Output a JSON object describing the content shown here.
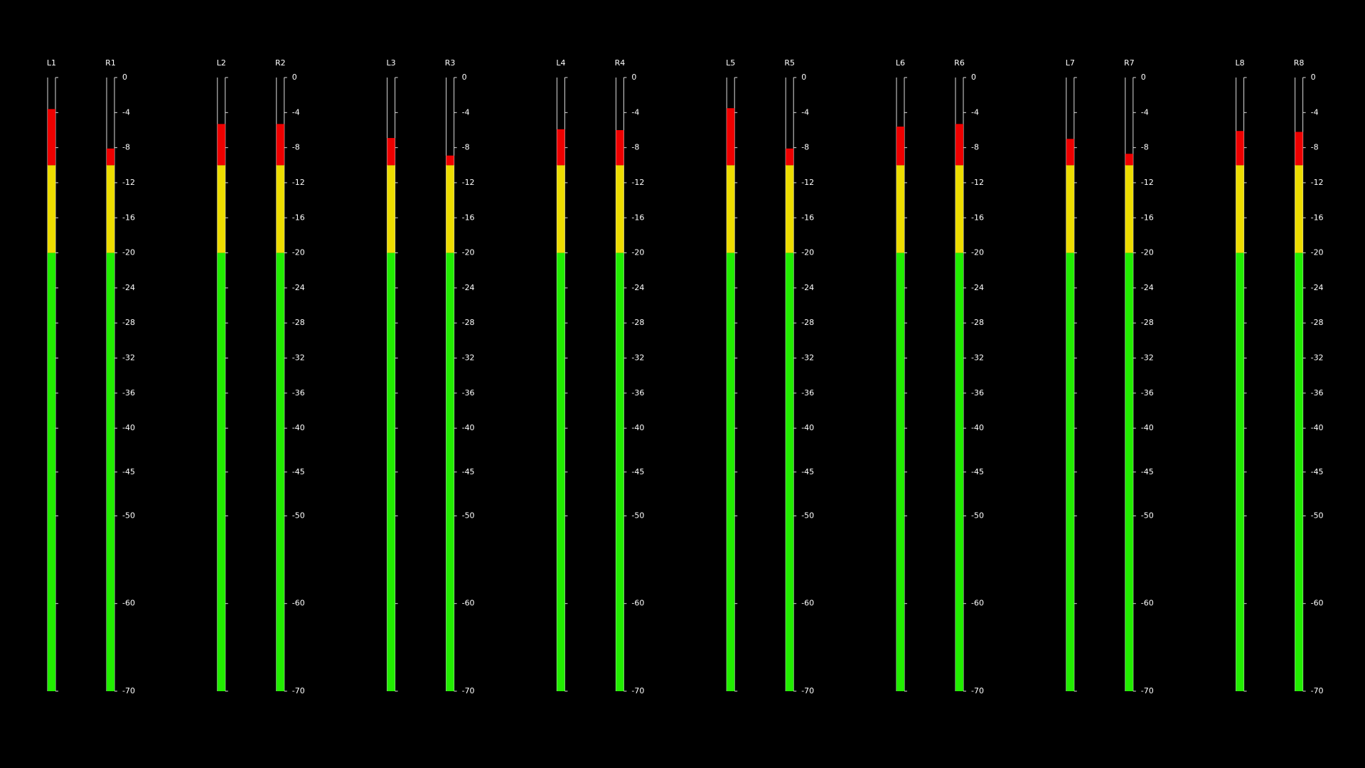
{
  "chart_data": {
    "type": "meter",
    "channels": [
      {
        "name": "L1",
        "value": -3.6
      },
      {
        "name": "R1",
        "value": -8.1
      },
      {
        "name": "L2",
        "value": -5.3
      },
      {
        "name": "R2",
        "value": -5.3
      },
      {
        "name": "L3",
        "value": -6.9
      },
      {
        "name": "R3",
        "value": -8.9
      },
      {
        "name": "L4",
        "value": -5.9
      },
      {
        "name": "R4",
        "value": -6.0
      },
      {
        "name": "L5",
        "value": -3.5
      },
      {
        "name": "R5",
        "value": -8.1
      },
      {
        "name": "L6",
        "value": -5.6
      },
      {
        "name": "R6",
        "value": -5.3
      },
      {
        "name": "L7",
        "value": -7.0
      },
      {
        "name": "R7",
        "value": -8.7
      },
      {
        "name": "L8",
        "value": -6.1
      },
      {
        "name": "R8",
        "value": -6.2
      }
    ],
    "ylim": [
      -70,
      0
    ],
    "yticks": [
      0,
      -4,
      -8,
      -12,
      -16,
      -20,
      -24,
      -28,
      -32,
      -36,
      -40,
      -45,
      -50,
      -60,
      -70
    ],
    "zones": [
      {
        "from": -70,
        "to": -20,
        "color": "#22ee00"
      },
      {
        "from": -20,
        "to": -10,
        "color": "#eedd00"
      },
      {
        "from": -10,
        "to": 0,
        "color": "#ee0000"
      }
    ]
  }
}
